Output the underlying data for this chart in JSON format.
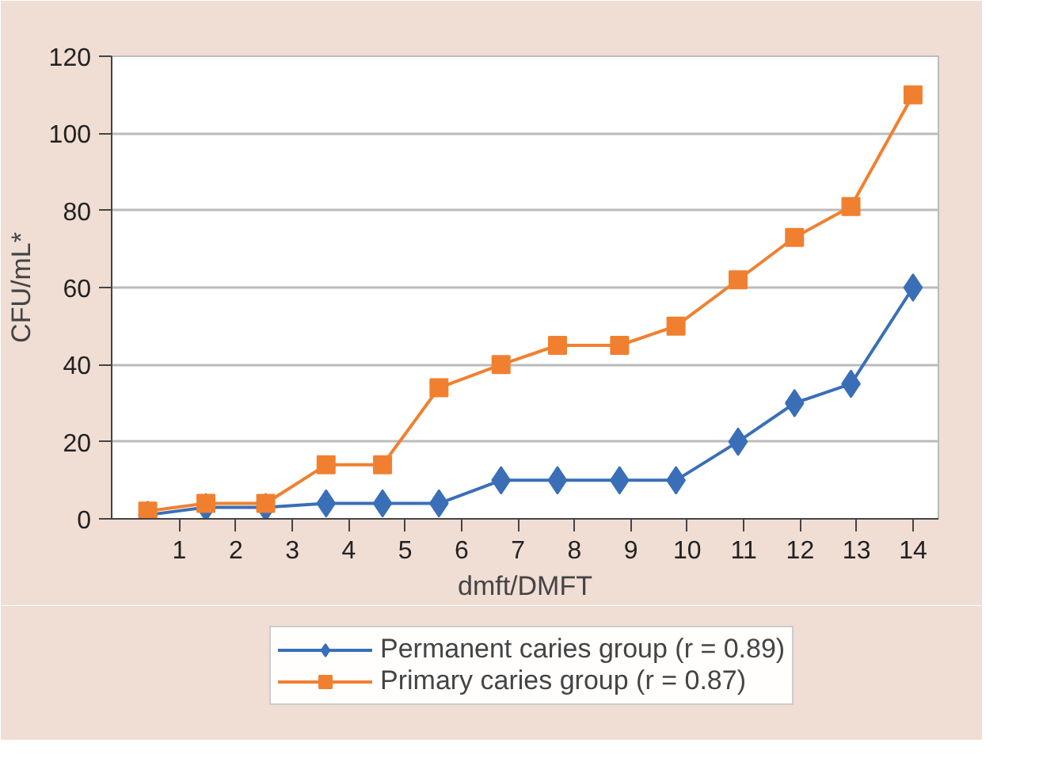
{
  "chart_data": {
    "type": "line",
    "xlabel": "dmft/DMFT",
    "ylabel": "CFU/mL*",
    "x": [
      0.44,
      1.47,
      2.53,
      3.6,
      4.6,
      5.6,
      6.7,
      7.7,
      8.8,
      9.8,
      10.9,
      11.9,
      12.9,
      14
    ],
    "xlim": [
      -0.2,
      14.45
    ],
    "xticks": [
      1,
      2,
      3,
      4,
      5,
      6,
      7,
      8,
      9,
      10,
      11,
      12,
      13,
      14
    ],
    "ylim": [
      0,
      120
    ],
    "yticks": [
      0,
      20,
      40,
      60,
      80,
      100,
      120
    ],
    "grid": "y",
    "legend": "bottom",
    "series": [
      {
        "name": "Permanent caries group (r = 0.89)",
        "color": "#3a6fb8",
        "marker": "diamond",
        "values": [
          1,
          3,
          3,
          4,
          4,
          4,
          10,
          10,
          10,
          10,
          20,
          30,
          35,
          60
        ]
      },
      {
        "name": "Primary caries group (r = 0.87)",
        "color": "#f08030",
        "marker": "square",
        "values": [
          2,
          4,
          4,
          14,
          14,
          34,
          40,
          45,
          45,
          50,
          62,
          73,
          81,
          110
        ]
      }
    ]
  }
}
